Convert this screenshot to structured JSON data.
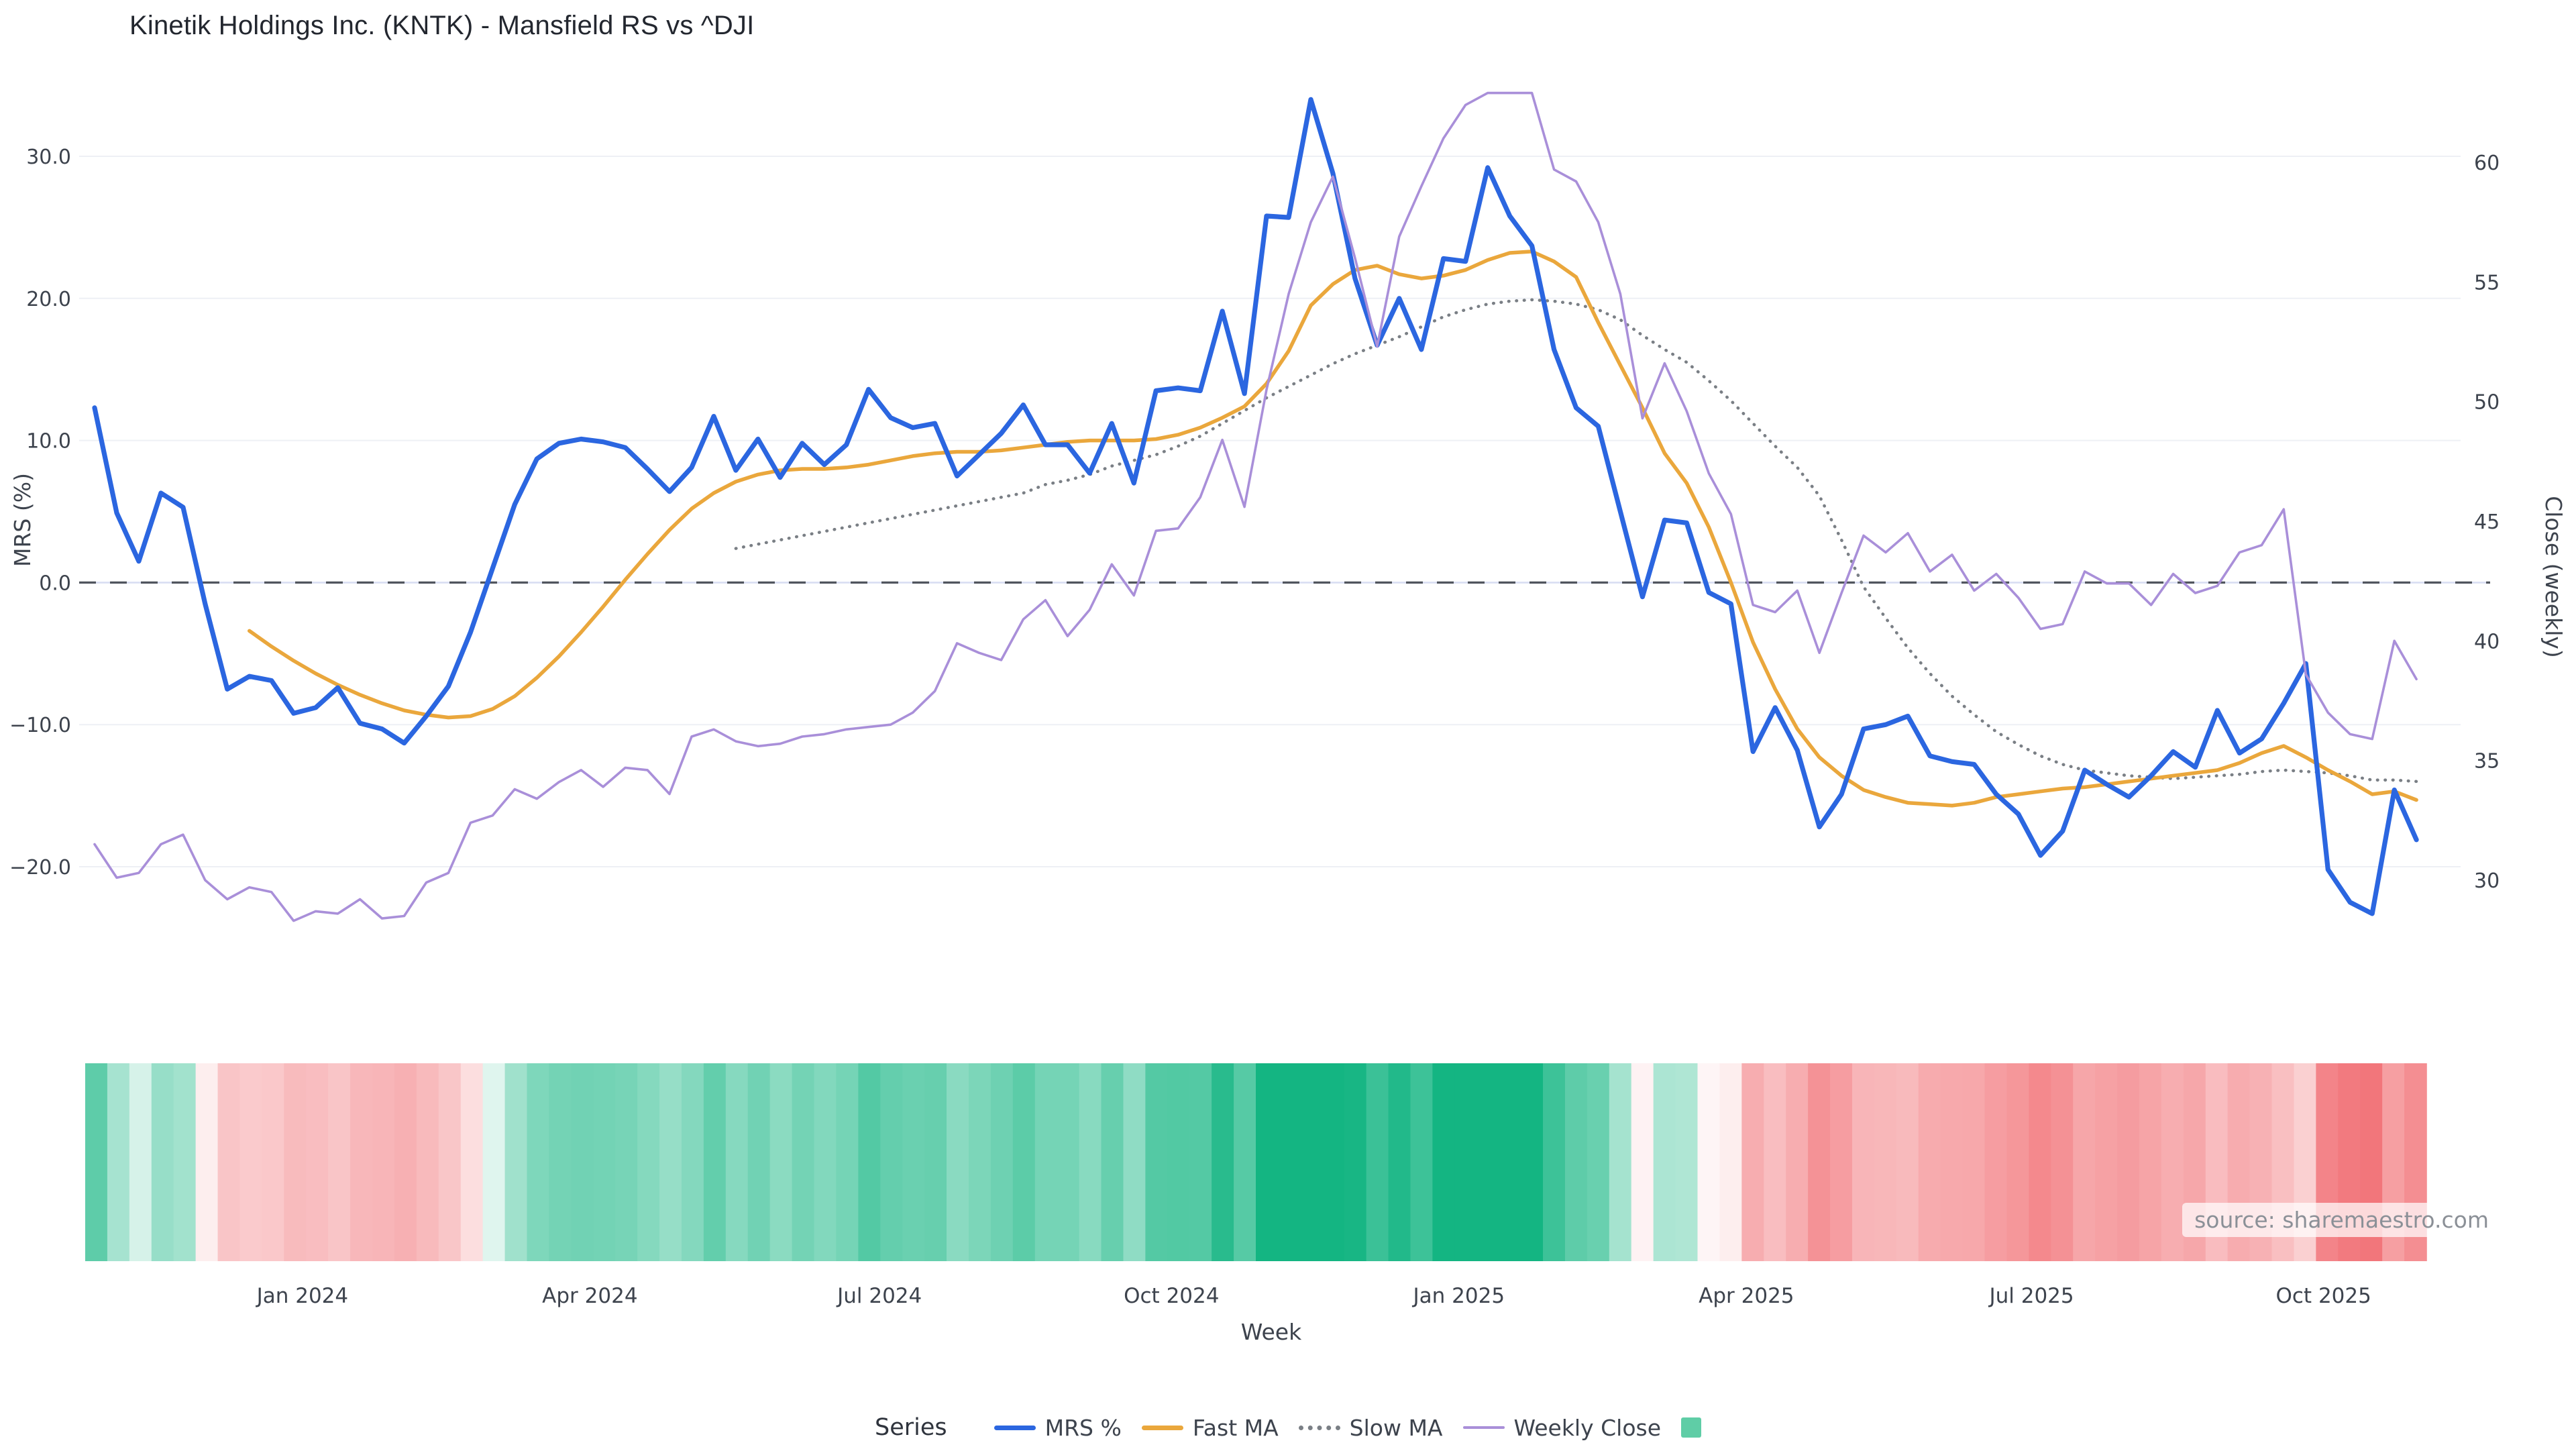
{
  "title": "Kinetik Holdings Inc. (KNTK) - Mansfield RS vs ^DJI",
  "watermark": "source: sharemaestro.com",
  "legend": {
    "title": "Series",
    "items": [
      {
        "label": "MRS %",
        "swatch": "line",
        "color": "#2b66e0"
      },
      {
        "label": "Fast MA",
        "swatch": "line",
        "color": "#eaa73c"
      },
      {
        "label": "Slow MA",
        "swatch": "dotted",
        "color": "#7a7f85"
      },
      {
        "label": "Weekly Close",
        "swatch": "thin",
        "color": "#a98fd9"
      },
      {
        "label": "",
        "swatch": "square",
        "color": "#5fcda6"
      }
    ]
  },
  "chart_data": {
    "type": "line",
    "title": "Kinetik Holdings Inc. (KNTK) - Mansfield RS vs ^DJI",
    "grid": true,
    "legend_position": "bottom",
    "x": {
      "label": "Week",
      "n_weeks": 106,
      "ticks": [
        {
          "label": "Jan 2024",
          "week": 9.4
        },
        {
          "label": "Apr 2024",
          "week": 22.4
        },
        {
          "label": "Jul 2024",
          "week": 35.5
        },
        {
          "label": "Oct 2024",
          "week": 48.7
        },
        {
          "label": "Jan 2025",
          "week": 61.7
        },
        {
          "label": "Apr 2025",
          "week": 74.7
        },
        {
          "label": "Jul 2025",
          "week": 87.6
        },
        {
          "label": "Oct 2025",
          "week": 100.8
        }
      ]
    },
    "y_left": {
      "label": "MRS (%)",
      "range": [
        -26,
        36
      ],
      "ticks": [
        {
          "v": 30,
          "label": "30.0"
        },
        {
          "v": 20,
          "label": "20.0"
        },
        {
          "v": 10,
          "label": "10.0"
        },
        {
          "v": 0,
          "label": "0.0"
        },
        {
          "v": -10,
          "label": "−10.0"
        },
        {
          "v": -20,
          "label": "−20.0"
        }
      ]
    },
    "y_right": {
      "label": "Close (weekly)",
      "range": [
        27,
        64
      ],
      "ticks": [
        {
          "v": 60,
          "label": "60"
        },
        {
          "v": 55,
          "label": "55"
        },
        {
          "v": 50,
          "label": "50"
        },
        {
          "v": 45,
          "label": "45"
        },
        {
          "v": 40,
          "label": "40"
        },
        {
          "v": 35,
          "label": "35"
        },
        {
          "v": 30,
          "label": "30"
        }
      ]
    },
    "zero_line": {
      "value": 0,
      "axis": "left",
      "style": "dashed"
    },
    "series": [
      {
        "name": "MRS %",
        "axis": "left",
        "color": "#2b66e0",
        "style": "solid",
        "width": 7.2,
        "values": [
          12.3,
          4.9,
          1.5,
          6.3,
          5.3,
          -1.5,
          -7.5,
          -6.6,
          -6.9,
          -9.2,
          -8.8,
          -7.4,
          -9.9,
          -10.3,
          -11.3,
          -9.4,
          -7.3,
          -3.5,
          1.0,
          5.5,
          8.7,
          9.8,
          10.1,
          9.9,
          9.5,
          8.0,
          6.4,
          8.1,
          11.7,
          7.9,
          10.1,
          7.4,
          9.8,
          8.3,
          9.7,
          13.6,
          11.6,
          10.9,
          11.2,
          7.5,
          9.0,
          10.5,
          12.5,
          9.7,
          9.7,
          7.7,
          11.2,
          7.0,
          13.5,
          13.7,
          13.5,
          19.1,
          13.3,
          25.8,
          25.7,
          34.0,
          28.8,
          21.4,
          16.7,
          20.0,
          16.4,
          22.8,
          22.6,
          29.2,
          25.8,
          23.7,
          16.4,
          12.3,
          11.0,
          5.0,
          -1.0,
          4.4,
          4.2,
          -0.7,
          -1.5,
          -11.9,
          -8.8,
          -11.8,
          -17.2,
          -14.9,
          -10.3,
          -10.0,
          -9.4,
          -12.2,
          -12.6,
          -12.8,
          -14.9,
          -16.3,
          -19.2,
          -17.5,
          -13.2,
          -14.2,
          -15.1,
          -13.6,
          -11.9,
          -13.0,
          -9.0,
          -12.0,
          -11.0,
          -8.5,
          -5.7,
          -20.2,
          -22.5,
          -23.3,
          -14.6,
          -18.1
        ]
      },
      {
        "name": "Fast MA",
        "axis": "left",
        "color": "#eaa73c",
        "style": "solid",
        "width": 5.5,
        "values": [
          null,
          null,
          null,
          null,
          null,
          null,
          null,
          -3.4,
          -4.5,
          -5.5,
          -6.4,
          -7.2,
          -7.9,
          -8.5,
          -9.0,
          -9.3,
          -9.5,
          -9.4,
          -8.9,
          -8.0,
          -6.7,
          -5.2,
          -3.5,
          -1.7,
          0.2,
          2.0,
          3.7,
          5.2,
          6.3,
          7.1,
          7.6,
          7.9,
          8.0,
          8.0,
          8.1,
          8.3,
          8.6,
          8.9,
          9.1,
          9.2,
          9.2,
          9.3,
          9.5,
          9.7,
          9.9,
          10.0,
          10.0,
          10.0,
          10.1,
          10.4,
          10.9,
          11.6,
          12.4,
          14.0,
          16.3,
          19.5,
          21.0,
          22.0,
          22.3,
          21.7,
          21.4,
          21.6,
          22.0,
          22.7,
          23.2,
          23.3,
          22.6,
          21.5,
          18.3,
          15.3,
          12.3,
          9.1,
          7.0,
          3.9,
          0.0,
          -4.2,
          -7.5,
          -10.3,
          -12.3,
          -13.6,
          -14.6,
          -15.1,
          -15.5,
          -15.6,
          -15.7,
          -15.5,
          -15.1,
          -14.9,
          -14.7,
          -14.5,
          -14.4,
          -14.2,
          -14.0,
          -13.8,
          -13.6,
          -13.4,
          -13.2,
          -12.7,
          -12.0,
          -11.5,
          -12.3,
          -13.2,
          -14.0,
          -14.9,
          -14.7,
          -15.3
        ]
      },
      {
        "name": "Slow MA",
        "axis": "left",
        "color": "#7a7f85",
        "style": "dotted",
        "width": 4.6,
        "values": [
          null,
          null,
          null,
          null,
          null,
          null,
          null,
          null,
          null,
          null,
          null,
          null,
          null,
          null,
          null,
          null,
          null,
          null,
          null,
          null,
          null,
          null,
          null,
          null,
          null,
          null,
          null,
          null,
          null,
          2.4,
          2.7,
          3.0,
          3.3,
          3.6,
          3.9,
          4.2,
          4.5,
          4.8,
          5.1,
          5.4,
          5.7,
          6.0,
          6.3,
          6.9,
          7.2,
          7.6,
          8.2,
          8.6,
          9.0,
          9.6,
          10.3,
          11.2,
          12.1,
          13.0,
          13.8,
          14.6,
          15.4,
          16.1,
          16.7,
          17.3,
          18.0,
          18.7,
          19.2,
          19.6,
          19.8,
          19.9,
          19.8,
          19.6,
          19.2,
          18.5,
          17.4,
          16.4,
          15.5,
          14.2,
          12.8,
          11.2,
          9.6,
          8.1,
          6.1,
          3.0,
          -0.3,
          -2.5,
          -4.6,
          -6.4,
          -8.0,
          -9.3,
          -10.5,
          -11.4,
          -12.2,
          -12.8,
          -13.2,
          -13.4,
          -13.6,
          -13.7,
          -13.8,
          -13.7,
          -13.6,
          -13.5,
          -13.3,
          -13.2,
          -13.3,
          -13.4,
          -13.6,
          -13.9,
          -13.9,
          -14.0
        ]
      },
      {
        "name": "Weekly Close",
        "axis": "right",
        "color": "#a98fd9",
        "style": "solid",
        "width": 3.6,
        "values": [
          31.5,
          30.1,
          30.3,
          31.5,
          31.9,
          30.0,
          29.2,
          29.7,
          29.5,
          28.3,
          28.7,
          28.6,
          29.2,
          28.4,
          28.5,
          29.9,
          30.3,
          32.4,
          32.7,
          33.8,
          33.4,
          34.1,
          34.6,
          33.9,
          34.7,
          34.6,
          33.6,
          36.0,
          36.3,
          35.8,
          35.6,
          35.7,
          36.0,
          36.1,
          36.3,
          36.4,
          36.5,
          37.0,
          37.9,
          39.9,
          39.5,
          39.2,
          40.9,
          41.7,
          40.2,
          41.3,
          43.2,
          41.9,
          44.6,
          44.7,
          46.0,
          48.4,
          45.6,
          50.5,
          54.5,
          57.5,
          59.4,
          56.0,
          52.3,
          56.9,
          59.0,
          61.0,
          62.4,
          62.9,
          62.9,
          62.9,
          59.7,
          59.2,
          57.5,
          54.5,
          49.3,
          51.6,
          49.6,
          47.0,
          45.3,
          41.5,
          41.2,
          42.1,
          39.5,
          42.0,
          44.4,
          43.7,
          44.5,
          42.9,
          43.6,
          42.1,
          42.8,
          41.8,
          40.5,
          40.7,
          42.9,
          42.4,
          42.4,
          41.5,
          42.8,
          42.0,
          42.3,
          43.7,
          44.0,
          45.5,
          38.6,
          37.0,
          36.1,
          35.9,
          40.0,
          38.4
        ]
      }
    ],
    "heatmap": {
      "source_series": "MRS %",
      "positive_color": "#14b582",
      "negative_color": "#ef5a60",
      "positive_scale": 22,
      "negative_scale": 30
    }
  }
}
